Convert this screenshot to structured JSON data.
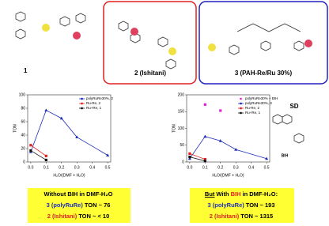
{
  "structures": {
    "labels": [
      "1",
      "2 (Ishitani)",
      "3 (PAH-Re/Ru 30%)"
    ]
  },
  "side": {
    "title": "SD",
    "label": "BIH"
  },
  "chart_data": [
    {
      "type": "line",
      "ylabel": "TON",
      "xlabel": "H₂O/(DMF + H₂O)",
      "xlim": [
        -0.02,
        0.52
      ],
      "xticks": [
        {
          "value": 0,
          "label": "0.0"
        },
        0.1,
        0.2,
        0.3,
        0.4,
        0.5
      ],
      "ylim": [
        0,
        100
      ],
      "yticks": [
        0,
        20,
        40,
        60,
        80,
        100
      ],
      "legend": "upper right",
      "series": [
        {
          "name": "polyRuRe30%, 3",
          "color": "#1f2fb8",
          "marker": "triangle",
          "line": true,
          "x": [
            0,
            0.1,
            0.2,
            0.3,
            0.5
          ],
          "values": [
            15,
            77,
            65,
            37,
            10
          ]
        },
        {
          "name": "Ru-Re, 2",
          "color": "#e02020",
          "marker": "square",
          "line": true,
          "x": [
            0,
            0.1
          ],
          "values": [
            25,
            9
          ]
        },
        {
          "name": "Ru+Re, 1",
          "color": "#111111",
          "marker": "square",
          "line": true,
          "x": [
            0,
            0.1
          ],
          "values": [
            17,
            3
          ]
        }
      ]
    },
    {
      "type": "line",
      "ylabel": "TON",
      "xlabel": "H₂O/(DMF + H₂O)",
      "xlim": [
        -0.02,
        0.52
      ],
      "xticks": [
        {
          "value": 0,
          "label": "0.0"
        },
        0.1,
        0.2,
        0.3,
        0.4,
        0.5
      ],
      "ylim": [
        0,
        200
      ],
      "yticks": [
        0,
        50,
        100,
        150,
        200
      ],
      "legend": "upper right",
      "series": [
        {
          "name": "polyRuRe30% + BIH",
          "color": "#e020d0",
          "marker": "square",
          "line": false,
          "x": [
            0.1,
            0.2
          ],
          "values": [
            171,
            153
          ]
        },
        {
          "name": "polyRuRe30%, 3",
          "color": "#1f2fb8",
          "marker": "triangle",
          "line": true,
          "x": [
            0,
            0.1,
            0.2,
            0.3,
            0.5
          ],
          "values": [
            10,
            76,
            63,
            37,
            10
          ]
        },
        {
          "name": "Ru-Re, 2",
          "color": "#e02020",
          "marker": "square",
          "line": true,
          "x": [
            0,
            0.1
          ],
          "values": [
            25,
            8
          ]
        },
        {
          "name": "Ru+Re, 1",
          "color": "#111111",
          "marker": "square",
          "line": true,
          "x": [
            0,
            0.1
          ],
          "values": [
            15,
            3
          ]
        }
      ]
    }
  ],
  "notes": [
    {
      "lines": [
        [
          "Without BIH in DMF-H₂O"
        ],
        [
          "3 (polyRuRe)",
          "TON ~ 76"
        ],
        [
          "2 (Ishitani)",
          "TON ~ < 10"
        ]
      ]
    },
    {
      "lines": [
        [
          "But",
          "With",
          "BIH",
          "in DMF-H₂O:"
        ],
        [
          "3 (polyRuRe)",
          "TON ~ 193"
        ],
        [
          "2 (Ishitani)",
          "TON ~ 1315"
        ]
      ]
    }
  ]
}
